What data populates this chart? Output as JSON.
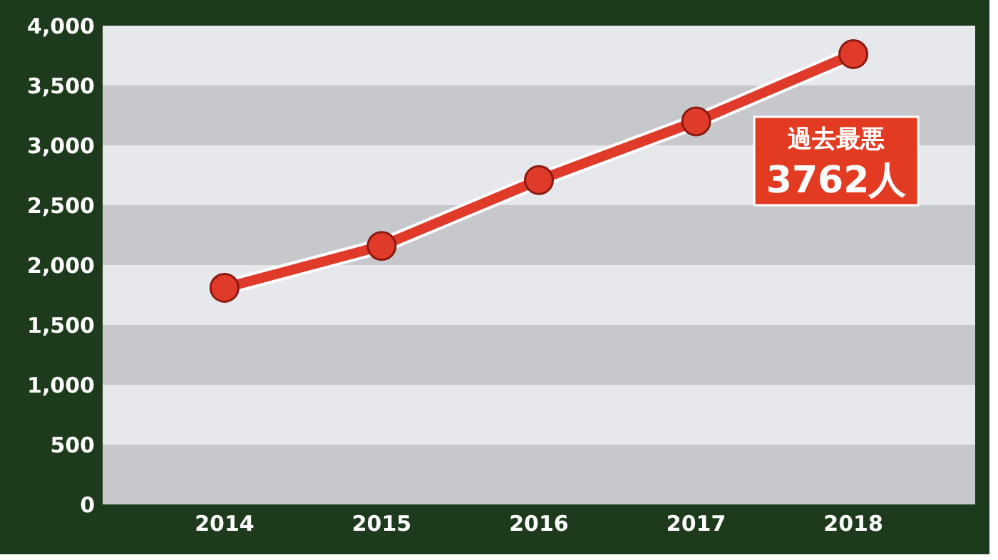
{
  "chart_data": {
    "type": "line",
    "categories": [
      "2014",
      "2015",
      "2016",
      "2017",
      "2018"
    ],
    "series": [
      {
        "color": "#e03a2a",
        "values": [
          1810,
          2160,
          2710,
          3200,
          3762
        ]
      }
    ],
    "ylim": [
      0,
      4000
    ],
    "yticks": [
      {
        "value": 0,
        "label": "0"
      },
      {
        "value": 500,
        "label": "500"
      },
      {
        "value": 1000,
        "label": "1,000"
      },
      {
        "value": 1500,
        "label": "1,500"
      },
      {
        "value": 2000,
        "label": "2,000"
      },
      {
        "value": 2500,
        "label": "2,500"
      },
      {
        "value": 3000,
        "label": "3,000"
      },
      {
        "value": 3500,
        "label": "3,500"
      },
      {
        "value": 4000,
        "label": "4,000"
      }
    ],
    "bands": [
      {
        "axis": "y",
        "from": 0,
        "to": 500,
        "color": "#c6c8cb"
      },
      {
        "axis": "y",
        "from": 1000,
        "to": 1500,
        "color": "#c6c8cb"
      },
      {
        "axis": "y",
        "from": 2000,
        "to": 2500,
        "color": "#c6c8cb"
      },
      {
        "axis": "y",
        "from": 3000,
        "to": 3500,
        "color": "#c6c8cb"
      }
    ],
    "annotations": [
      {
        "text": "過去最悪\n3762人",
        "x": "2018",
        "y": 3762
      }
    ],
    "marker": "circle",
    "line_style": "solid"
  }
}
